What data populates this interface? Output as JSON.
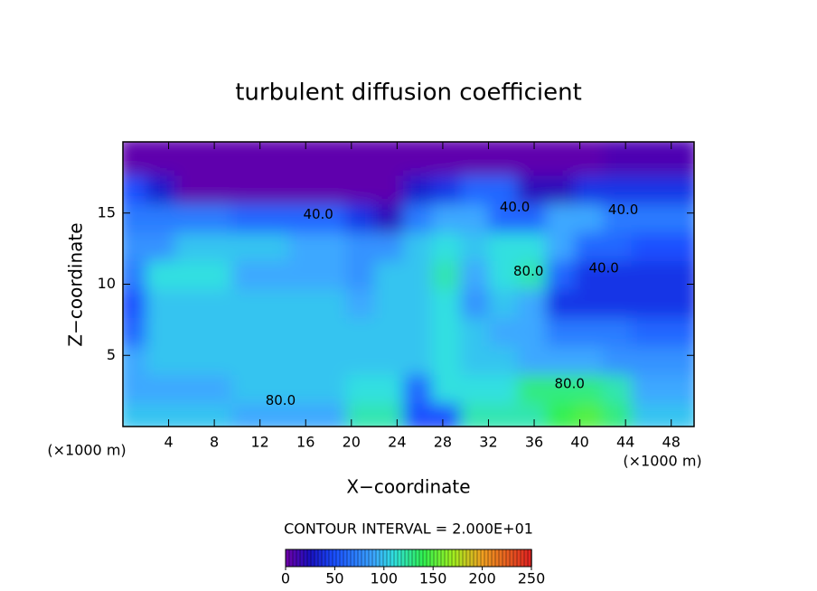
{
  "chart_data": {
    "type": "contour",
    "title": "turbulent diffusion coefficient",
    "x_label": "X−coordinate",
    "y_label": "Z−coordinate",
    "x_unit_left": "(×1000 m)",
    "x_unit_right": "(×1000 m)",
    "xlim": [
      0,
      50
    ],
    "ylim": [
      0,
      20
    ],
    "xticks": [
      4,
      8,
      12,
      16,
      20,
      24,
      28,
      32,
      36,
      40,
      44,
      48
    ],
    "yticks": [
      5,
      10,
      15
    ],
    "xbins": [
      0,
      2.5,
      5,
      7.5,
      10,
      12.5,
      15,
      17.5,
      20,
      22.5,
      25,
      27.5,
      30,
      32.5,
      35,
      37.5,
      40,
      42.5,
      45,
      47.5,
      50
    ],
    "ybins": [
      0,
      2,
      4,
      6,
      8,
      10,
      12,
      14,
      16,
      18,
      20
    ],
    "z": [
      [
        100,
        100,
        100,
        100,
        90,
        90,
        90,
        90,
        120,
        120,
        50,
        50,
        120,
        120,
        120,
        140,
        150,
        130,
        100,
        100
      ],
      [
        90,
        90,
        90,
        90,
        100,
        100,
        100,
        100,
        110,
        110,
        60,
        110,
        110,
        110,
        130,
        130,
        130,
        120,
        90,
        90
      ],
      [
        90,
        100,
        100,
        100,
        100,
        100,
        100,
        100,
        100,
        100,
        100,
        110,
        100,
        100,
        90,
        90,
        90,
        80,
        80,
        80
      ],
      [
        60,
        100,
        100,
        100,
        100,
        100,
        100,
        100,
        100,
        100,
        100,
        110,
        100,
        90,
        90,
        70,
        70,
        70,
        60,
        60
      ],
      [
        50,
        100,
        100,
        100,
        100,
        100,
        100,
        100,
        90,
        100,
        100,
        110,
        80,
        100,
        90,
        40,
        40,
        40,
        40,
        40
      ],
      [
        70,
        110,
        110,
        110,
        90,
        90,
        90,
        90,
        80,
        100,
        100,
        120,
        90,
        110,
        120,
        60,
        40,
        40,
        40,
        40
      ],
      [
        80,
        80,
        100,
        100,
        100,
        100,
        90,
        90,
        80,
        80,
        100,
        110,
        100,
        110,
        110,
        90,
        60,
        60,
        50,
        50
      ],
      [
        70,
        70,
        70,
        70,
        60,
        60,
        60,
        60,
        40,
        20,
        70,
        90,
        90,
        60,
        60,
        90,
        90,
        70,
        70,
        70
      ],
      [
        50,
        30,
        5,
        5,
        5,
        5,
        5,
        5,
        5,
        5,
        30,
        40,
        60,
        60,
        20,
        20,
        40,
        40,
        40,
        40
      ],
      [
        5,
        5,
        5,
        5,
        5,
        5,
        5,
        5,
        5,
        5,
        5,
        5,
        5,
        5,
        5,
        5,
        5,
        10,
        10,
        10
      ]
    ],
    "contour_labels": [
      {
        "label": "40.0",
        "x": 17.1,
        "y": 14.9
      },
      {
        "label": "80.0",
        "x": 13.8,
        "y": 1.8
      },
      {
        "label": "80.0",
        "x": 39.1,
        "y": 3.0
      },
      {
        "label": "80.0",
        "x": 35.5,
        "y": 10.9
      },
      {
        "label": "40.0",
        "x": 42.1,
        "y": 11.1
      },
      {
        "label": "40.0",
        "x": 43.8,
        "y": 15.2
      },
      {
        "label": "40.0",
        "x": 34.3,
        "y": 15.4
      }
    ],
    "colorbar": {
      "title": "CONTOUR INTERVAL = 2.000E+01",
      "lim": [
        0,
        250
      ],
      "ticks": [
        0,
        50,
        100,
        150,
        200,
        250
      ]
    },
    "colormap": [
      {
        "value": 0,
        "color": "#7000a8"
      },
      {
        "value": 25,
        "color": "#1810c0"
      },
      {
        "value": 50,
        "color": "#1a50ff"
      },
      {
        "value": 90,
        "color": "#3ca8ff"
      },
      {
        "value": 110,
        "color": "#30e0e0"
      },
      {
        "value": 140,
        "color": "#30f050"
      },
      {
        "value": 170,
        "color": "#a0f020"
      },
      {
        "value": 200,
        "color": "#f0a020"
      },
      {
        "value": 250,
        "color": "#e02020"
      }
    ]
  }
}
